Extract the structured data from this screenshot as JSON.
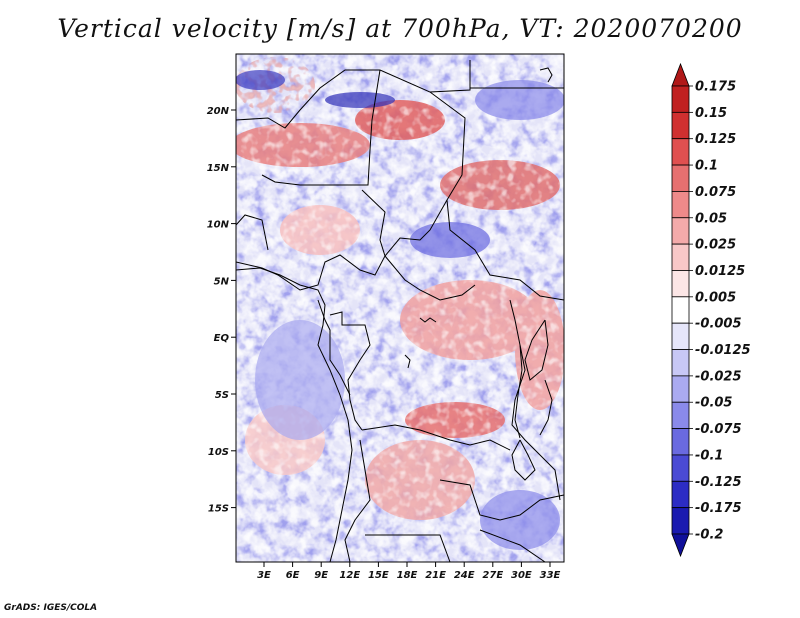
{
  "title": "Vertical velocity [m/s] at 700hPa, VT: 2020070200",
  "credit": "GrADS: IGES/COLA",
  "map": {
    "lat_labels": [
      "20N",
      "15N",
      "10N",
      "5N",
      "EQ",
      "5S",
      "10S",
      "15S"
    ],
    "lon_labels": [
      "3E",
      "6E",
      "9E",
      "12E",
      "15E",
      "18E",
      "21E",
      "24E",
      "27E",
      "30E",
      "33E"
    ],
    "field": "vertical velocity",
    "level": "700hPa",
    "valid_time": "2020070200"
  },
  "colorbar": {
    "labels": [
      "0.175",
      "0.15",
      "0.125",
      "0.1",
      "0.075",
      "0.05",
      "0.025",
      "0.0125",
      "0.005",
      "-0.005",
      "-0.0125",
      "-0.025",
      "-0.05",
      "-0.075",
      "-0.1",
      "-0.125",
      "-0.175",
      "-0.2"
    ],
    "colors": [
      "#b01818",
      "#c02020",
      "#d03030",
      "#e05050",
      "#e67070",
      "#ee8a8a",
      "#f4aaaa",
      "#f8c8c8",
      "#fce6e6",
      "#ffffff",
      "#e6e6fa",
      "#c8c8f6",
      "#aaaaf0",
      "#8a8aea",
      "#6a6ae0",
      "#4a4ad4",
      "#2c2cc4",
      "#1a1ab0",
      "#10109a"
    ]
  }
}
